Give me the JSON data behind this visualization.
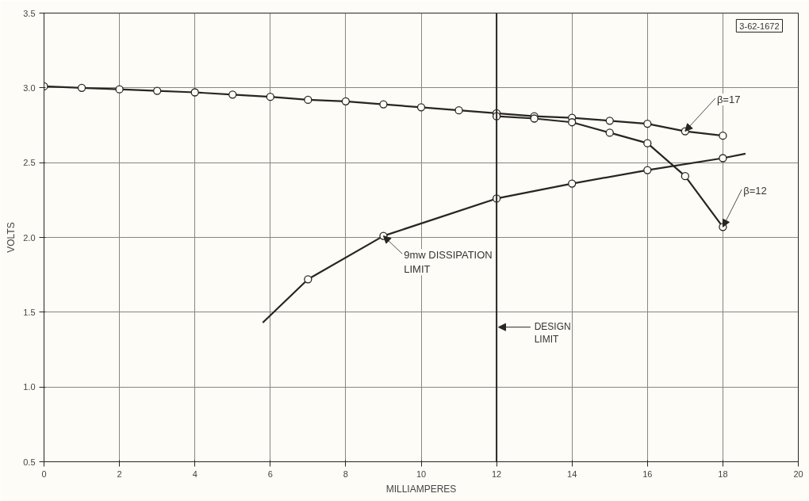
{
  "chart_data": {
    "type": "line",
    "xlabel": "MILLIAMPERES",
    "ylabel": "VOLTS",
    "xlim": [
      0,
      20
    ],
    "ylim": [
      0.5,
      3.5
    ],
    "xticks": [
      0,
      2,
      4,
      6,
      8,
      10,
      12,
      14,
      16,
      18,
      20
    ],
    "yticks": [
      0.5,
      {
        "value": 1,
        "label": "1.0"
      },
      1.5,
      {
        "value": 2,
        "label": "2.0"
      },
      2.5,
      {
        "value": 3,
        "label": "3.0"
      },
      3.5
    ],
    "grid": true,
    "marker": "circle",
    "line_style": "solid",
    "series": [
      {
        "color": "#2a2522",
        "x": [
          0,
          1,
          2,
          3,
          4,
          5,
          6,
          7,
          8,
          9,
          10,
          11,
          12,
          13,
          14,
          15,
          16,
          17,
          18
        ],
        "values": [
          3.01,
          3.0,
          2.99,
          2.98,
          2.97,
          2.955,
          2.94,
          2.92,
          2.91,
          2.89,
          2.87,
          2.85,
          2.83,
          2.81,
          2.8,
          2.78,
          2.76,
          2.71,
          2.68
        ]
      },
      {
        "color": "#2a2522",
        "x": [
          12,
          13,
          14,
          15,
          16,
          17,
          18
        ],
        "values": [
          2.81,
          2.795,
          2.77,
          2.7,
          2.63,
          2.41,
          2.07
        ]
      },
      {
        "color": "#2a2522",
        "marker": "none",
        "x": [
          5.8,
          7,
          9,
          12,
          14,
          16,
          18,
          18.6
        ],
        "values": [
          1.43,
          1.72,
          2.01,
          2.26,
          2.36,
          2.45,
          2.53,
          2.56
        ]
      },
      {
        "type": "scatter",
        "color": "#2a2522",
        "x": [
          7,
          9,
          12,
          14,
          16,
          18
        ],
        "values": [
          1.72,
          2.01,
          2.26,
          2.36,
          2.45,
          2.53
        ]
      }
    ],
    "ref_lines": [
      {
        "axis": "x",
        "value": 12,
        "label": "DESIGN\nLIMIT",
        "color": "#2a2522"
      }
    ],
    "annotations": [
      {
        "text": "β=17",
        "x": 17,
        "y": 2.71
      },
      {
        "text": "β=12",
        "x": 18,
        "y": 2.07
      },
      {
        "text": "9mw DISSIPATION\nLIMIT",
        "x": 9,
        "y": 2.01
      },
      "3-62-1672"
    ]
  }
}
